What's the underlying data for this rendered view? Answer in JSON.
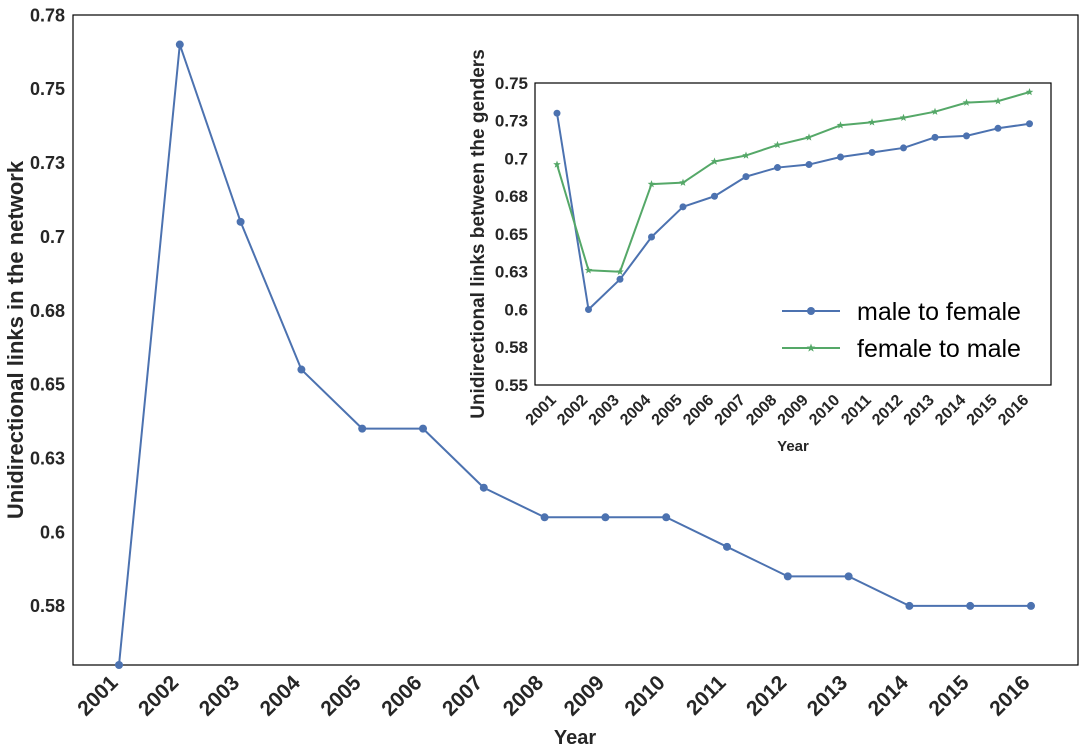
{
  "chart_data": [
    {
      "type": "line",
      "xlabel": "Year",
      "ylabel": "Unidirectional links in the network",
      "x": [
        "2001",
        "2002",
        "2003",
        "2004",
        "2005",
        "2006",
        "2007",
        "2008",
        "2009",
        "2010",
        "2011",
        "2012",
        "2013",
        "2014",
        "2015",
        "2016"
      ],
      "yticks": [
        "0.78",
        "0.75",
        "0.73",
        "0.7",
        "0.68",
        "0.65",
        "0.63",
        "0.6",
        "0.58"
      ],
      "ytick_values": [
        0.775,
        0.75,
        0.725,
        0.7,
        0.675,
        0.65,
        0.625,
        0.6,
        0.575
      ],
      "ylim": [
        0.555,
        0.775
      ],
      "series": [
        {
          "values": [
            0.555,
            0.765,
            0.705,
            0.655,
            0.635,
            0.635,
            0.615,
            0.605,
            0.605,
            0.605,
            0.595,
            0.585,
            0.585,
            0.575,
            0.575,
            0.575
          ],
          "color": "#4c72b0",
          "marker": "circle"
        }
      ],
      "grid": false
    },
    {
      "type": "line",
      "xlabel": "Year",
      "ylabel": "Unidirectional links between the genders",
      "x": [
        "2001",
        "2002",
        "2003",
        "2004",
        "2005",
        "2006",
        "2007",
        "2008",
        "2009",
        "2010",
        "2011",
        "2012",
        "2013",
        "2014",
        "2015",
        "2016"
      ],
      "yticks": [
        "0.75",
        "0.73",
        "0.7",
        "0.68",
        "0.65",
        "0.63",
        "0.6",
        "0.58",
        "0.55"
      ],
      "ytick_values": [
        0.75,
        0.725,
        0.7,
        0.675,
        0.65,
        0.625,
        0.6,
        0.575,
        0.55
      ],
      "ylim": [
        0.55,
        0.75
      ],
      "series": [
        {
          "name": "male to female",
          "values": [
            0.73,
            0.6,
            0.62,
            0.648,
            0.668,
            0.675,
            0.688,
            0.694,
            0.696,
            0.701,
            0.704,
            0.707,
            0.714,
            0.715,
            0.72,
            0.723
          ],
          "color": "#4c72b0",
          "marker": "circle"
        },
        {
          "name": "female to male",
          "values": [
            0.696,
            0.626,
            0.625,
            0.683,
            0.684,
            0.698,
            0.702,
            0.709,
            0.714,
            0.722,
            0.724,
            0.727,
            0.731,
            0.737,
            0.738,
            0.744
          ],
          "color": "#55a868",
          "marker": "star"
        }
      ],
      "legend": "lower-right",
      "grid": false
    }
  ]
}
